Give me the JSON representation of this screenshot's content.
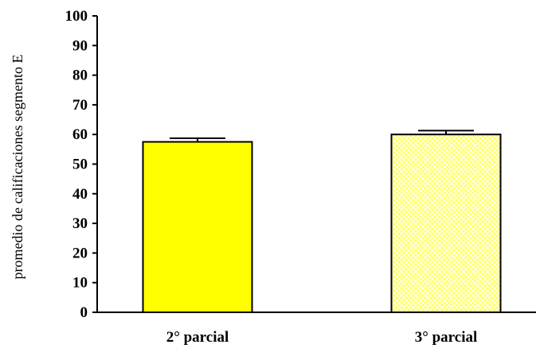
{
  "chart_data": {
    "type": "bar",
    "categories": [
      "2° parcial",
      "3° parcial"
    ],
    "values": [
      57.5,
      60
    ],
    "error": [
      1.2,
      1.3
    ],
    "title": "",
    "xlabel": "",
    "ylabel": "promedio de calificaciones segmento E",
    "ylim": [
      0,
      100
    ],
    "yticks": [
      0,
      10,
      20,
      30,
      40,
      50,
      60,
      70,
      80,
      90,
      100
    ],
    "grid": false,
    "bar_styles": [
      {
        "fill": "#ffff00",
        "pattern": "solid"
      },
      {
        "fill": "#ffff66",
        "pattern": "crosshatch"
      }
    ]
  }
}
